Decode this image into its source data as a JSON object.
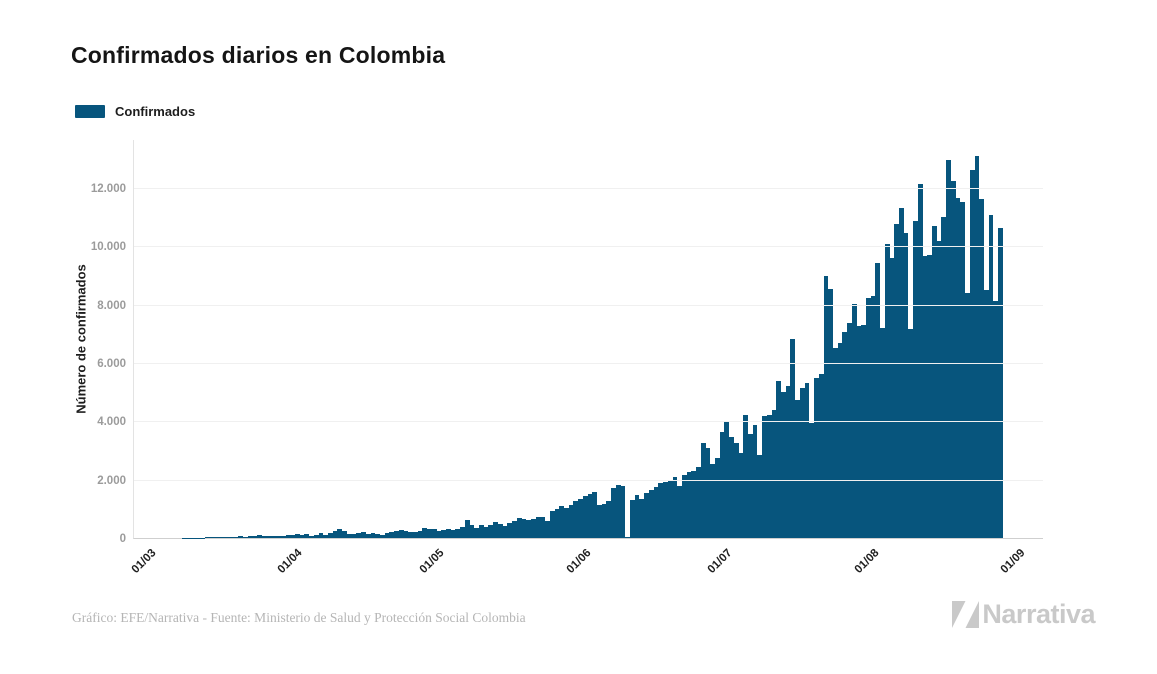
{
  "title": "Confirmados diarios en Colombia",
  "legend": {
    "label": "Confirmados",
    "swatch_color": "#07557d"
  },
  "y_axis": {
    "title": "Número de confirmados",
    "ticks": [
      "0",
      "2.000",
      "4.000",
      "6.000",
      "8.000",
      "10.000",
      "12.000"
    ],
    "tick_values": [
      0,
      2000,
      4000,
      6000,
      8000,
      10000,
      12000
    ]
  },
  "x_axis": {
    "ticks": [
      "01/03",
      "01/04",
      "01/05",
      "01/06",
      "01/07",
      "01/08",
      "01/09"
    ],
    "tick_day_offsets": [
      0,
      31,
      61,
      92,
      122,
      153,
      184
    ],
    "axis_total_days": 184
  },
  "footer": {
    "source": "Gráfico: EFE/Narrativa - Fuente: Ministerio de Salud y Protección Social Colombia",
    "brand": "Narrativa"
  },
  "chart_data": {
    "type": "bar",
    "title": "Confirmados diarios en Colombia",
    "xlabel": "",
    "ylabel": "Número de confirmados",
    "ylim": [
      0,
      13650
    ],
    "grid": true,
    "legend_position": "top-left",
    "bar_color": "#07557d",
    "series_name": "Confirmados",
    "x_start": "2020-03-01",
    "x_end": "2020-08-29",
    "x_unit": "day",
    "values": [
      0,
      0,
      0,
      0,
      0,
      1,
      1,
      2,
      3,
      6,
      9,
      13,
      16,
      21,
      24,
      27,
      31,
      35,
      43,
      50,
      55,
      48,
      62,
      75,
      88,
      78,
      85,
      70,
      64,
      80,
      95,
      110,
      130,
      105,
      140,
      85,
      95,
      165,
      120,
      180,
      255,
      300,
      230,
      135,
      125,
      160,
      210,
      145,
      170,
      130,
      120,
      155,
      200,
      230,
      270,
      245,
      215,
      190,
      240,
      330,
      310,
      320,
      250,
      265,
      310,
      280,
      300,
      380,
      615,
      460,
      330,
      430,
      390,
      450,
      540,
      470,
      420,
      530,
      570,
      700,
      640,
      610,
      660,
      710,
      720,
      580,
      910,
      1000,
      1100,
      1030,
      1120,
      1270,
      1350,
      1450,
      1500,
      1575,
      1130,
      1180,
      1260,
      1710,
      1810,
      1770,
      40,
      1300,
      1470,
      1350,
      1540,
      1640,
      1750,
      1870,
      1915,
      1990,
      2090,
      1800,
      2160,
      2250,
      2300,
      2450,
      3250,
      3100,
      2550,
      2750,
      3620,
      4030,
      3460,
      3250,
      2900,
      4210,
      3580,
      3870,
      2840,
      4170,
      4210,
      4380,
      5400,
      5000,
      5200,
      6840,
      4720,
      5130,
      5300,
      3930,
      5500,
      5640,
      8990,
      8550,
      6530,
      6700,
      7050,
      7390,
      8030,
      7280,
      7310,
      8240,
      8310,
      9440,
      7200,
      10090,
      9610,
      10770,
      11320,
      10470,
      7180,
      10870,
      12130,
      9675,
      9700,
      10700,
      10200,
      11000,
      12960,
      12240,
      11660,
      11540,
      8410,
      12620,
      13100,
      11630,
      8500,
      11070,
      8130,
      10630
    ]
  }
}
